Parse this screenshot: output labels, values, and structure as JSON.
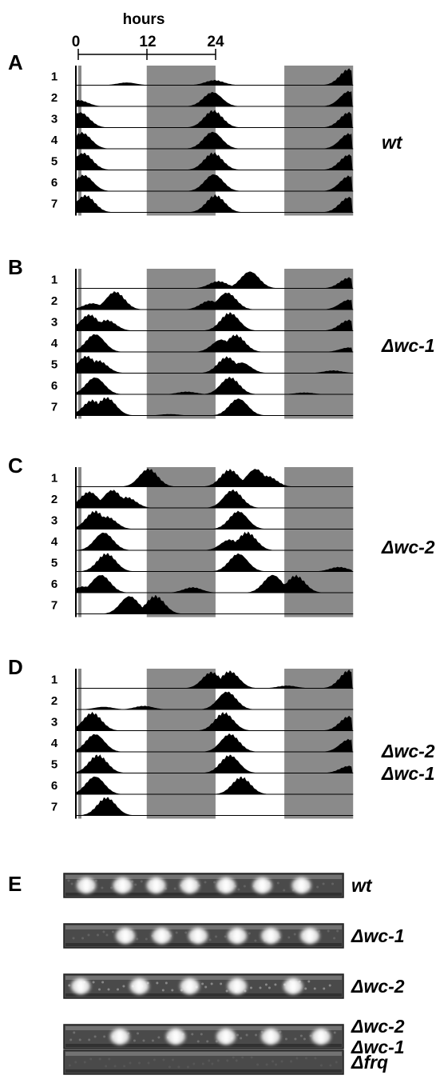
{
  "axis": {
    "label": "hours",
    "ticks": [
      "0",
      "12",
      "24"
    ]
  },
  "colors": {
    "dark_period": "#8a8a8a",
    "trace": "#000000"
  },
  "panels": [
    {
      "letter": "A",
      "strain_lines": [
        "wt"
      ],
      "days": [
        "1",
        "2",
        "3",
        "4",
        "5",
        "6",
        "7"
      ],
      "peaks": [
        [
          {
            "t": 9.0,
            "v": 0.15
          },
          {
            "t": 24.3,
            "v": 0.28
          },
          {
            "t": 47.8,
            "v": 0.9
          }
        ],
        [
          {
            "t": 0.6,
            "v": 0.35
          },
          {
            "t": 24.0,
            "v": 0.8
          },
          {
            "t": 47.8,
            "v": 0.85
          }
        ],
        [
          {
            "t": 0.9,
            "v": 0.85
          },
          {
            "t": 24.1,
            "v": 0.95
          },
          {
            "t": 47.8,
            "v": 0.85
          }
        ],
        [
          {
            "t": 1.2,
            "v": 0.9
          },
          {
            "t": 24.0,
            "v": 0.95
          },
          {
            "t": 47.8,
            "v": 0.85
          }
        ],
        [
          {
            "t": 1.4,
            "v": 0.95
          },
          {
            "t": 24.1,
            "v": 0.95
          },
          {
            "t": 47.8,
            "v": 0.85
          }
        ],
        [
          {
            "t": 1.5,
            "v": 0.9
          },
          {
            "t": 24.2,
            "v": 0.95
          },
          {
            "t": 47.8,
            "v": 0.85
          }
        ],
        [
          {
            "t": 1.8,
            "v": 0.95
          },
          {
            "t": 24.5,
            "v": 0.95
          },
          {
            "t": 47.8,
            "v": 0.85
          }
        ]
      ]
    },
    {
      "letter": "B",
      "strain_lines": [
        "Δwc-1"
      ],
      "days": [
        "1",
        "2",
        "3",
        "4",
        "5",
        "6",
        "7"
      ],
      "peaks": [
        [
          {
            "t": 25.0,
            "v": 0.4
          },
          {
            "t": 30.5,
            "v": 0.95
          },
          {
            "t": 47.8,
            "v": 0.6
          }
        ],
        [
          {
            "t": 3.0,
            "v": 0.35
          },
          {
            "t": 7.0,
            "v": 1.0
          },
          {
            "t": 23.5,
            "v": 0.5
          },
          {
            "t": 26.5,
            "v": 0.95
          },
          {
            "t": 47.8,
            "v": 0.55
          }
        ],
        [
          {
            "t": 2.5,
            "v": 0.9
          },
          {
            "t": 5.5,
            "v": 0.6
          },
          {
            "t": 27.0,
            "v": 1.0
          },
          {
            "t": 47.8,
            "v": 0.6
          }
        ],
        [
          {
            "t": 3.5,
            "v": 1.0
          },
          {
            "t": 25.5,
            "v": 0.7
          },
          {
            "t": 28.0,
            "v": 0.95
          },
          {
            "t": 47.8,
            "v": 0.25
          }
        ],
        [
          {
            "t": 2.0,
            "v": 0.95
          },
          {
            "t": 4.0,
            "v": 0.7
          },
          {
            "t": 26.5,
            "v": 0.9
          },
          {
            "t": 29.0,
            "v": 0.6
          },
          {
            "t": 45.0,
            "v": 0.15
          }
        ],
        [
          {
            "t": 3.5,
            "v": 0.95
          },
          {
            "t": 19.5,
            "v": 0.15
          },
          {
            "t": 27.0,
            "v": 0.95
          },
          {
            "t": 40.0,
            "v": 0.1
          }
        ],
        [
          {
            "t": 3.0,
            "v": 0.85
          },
          {
            "t": 5.5,
            "v": 1.0
          },
          {
            "t": 16.5,
            "v": 0.08
          },
          {
            "t": 28.5,
            "v": 0.95
          }
        ]
      ]
    },
    {
      "letter": "C",
      "strain_lines": [
        "Δwc-2"
      ],
      "days": [
        "1",
        "2",
        "3",
        "4",
        "5",
        "6",
        "7"
      ],
      "peaks": [
        [
          {
            "t": 12.8,
            "v": 1.0
          },
          {
            "t": 27.0,
            "v": 0.95
          },
          {
            "t": 31.5,
            "v": 1.0
          },
          {
            "t": 33.5,
            "v": 0.6
          }
        ],
        [
          {
            "t": 2.5,
            "v": 0.9
          },
          {
            "t": 6.5,
            "v": 1.0
          },
          {
            "t": 9.0,
            "v": 0.6
          },
          {
            "t": 27.5,
            "v": 1.0
          }
        ],
        [
          {
            "t": 3.5,
            "v": 1.0
          },
          {
            "t": 5.5,
            "v": 0.7
          },
          {
            "t": 28.5,
            "v": 1.0
          }
        ],
        [
          {
            "t": 5.0,
            "v": 1.0
          },
          {
            "t": 27.0,
            "v": 0.6
          },
          {
            "t": 30.0,
            "v": 1.0
          }
        ],
        [
          {
            "t": 5.5,
            "v": 1.0
          },
          {
            "t": 28.5,
            "v": 1.0
          },
          {
            "t": 46.0,
            "v": 0.25
          }
        ],
        [
          {
            "t": 1.5,
            "v": 0.35
          },
          {
            "t": 4.5,
            "v": 1.0
          },
          {
            "t": 20.5,
            "v": 0.3
          },
          {
            "t": 34.5,
            "v": 1.0
          },
          {
            "t": 38.5,
            "v": 0.95
          }
        ],
        [
          {
            "t": 9.5,
            "v": 1.0
          },
          {
            "t": 14.0,
            "v": 1.0
          }
        ]
      ]
    },
    {
      "letter": "D",
      "strain_lines": [
        "Δwc-2",
        "Δwc-1"
      ],
      "days": [
        "1",
        "2",
        "3",
        "4",
        "5",
        "6",
        "7"
      ],
      "peaks": [
        [
          {
            "t": 23.8,
            "v": 0.9
          },
          {
            "t": 27.0,
            "v": 0.95
          },
          {
            "t": 37.0,
            "v": 0.15
          },
          {
            "t": 47.8,
            "v": 1.0
          }
        ],
        [
          {
            "t": 5.0,
            "v": 0.15
          },
          {
            "t": 12.0,
            "v": 0.2
          },
          {
            "t": 26.5,
            "v": 1.0
          }
        ],
        [
          {
            "t": 3.0,
            "v": 1.0
          },
          {
            "t": 26.0,
            "v": 1.0
          },
          {
            "t": 47.8,
            "v": 0.8
          }
        ],
        [
          {
            "t": 3.5,
            "v": 1.0
          },
          {
            "t": 27.0,
            "v": 1.0
          },
          {
            "t": 47.8,
            "v": 0.7
          }
        ],
        [
          {
            "t": 4.0,
            "v": 1.0
          },
          {
            "t": 27.0,
            "v": 1.0
          },
          {
            "t": 47.8,
            "v": 0.4
          }
        ],
        [
          {
            "t": 3.5,
            "v": 1.0
          },
          {
            "t": 29.0,
            "v": 0.95
          }
        ],
        [
          {
            "t": 5.5,
            "v": 1.0
          }
        ]
      ]
    }
  ],
  "race_tubes": {
    "letter": "E",
    "tubes": [
      {
        "strain_lines": [
          "wt"
        ],
        "bands": [
          0.08,
          0.21,
          0.33,
          0.45,
          0.58,
          0.71,
          0.85
        ],
        "noise": 0.2
      },
      {
        "strain_lines": [
          "Δwc-1"
        ],
        "bands": [
          0.22,
          0.35,
          0.48,
          0.62,
          0.74,
          0.88
        ],
        "noise": 0.2
      },
      {
        "strain_lines": [
          "Δwc-2"
        ],
        "bands": [
          0.06,
          0.27,
          0.45,
          0.62,
          0.82
        ],
        "noise": 0.5
      },
      {
        "strain_lines": [
          "Δwc-2",
          "Δwc-1"
        ],
        "bands": [
          0.2,
          0.4,
          0.58,
          0.74,
          0.92
        ],
        "noise": 0.3
      },
      {
        "strain_lines": [
          "Δfrq"
        ],
        "bands": [],
        "noise": 0.1
      }
    ]
  }
}
